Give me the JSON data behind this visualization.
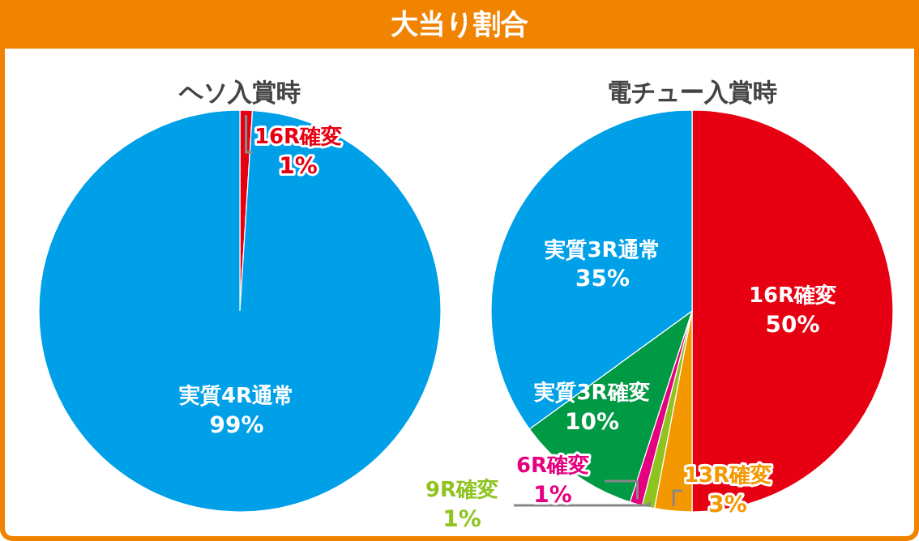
{
  "chart_data": [
    {
      "type": "other",
      "title": "大当り割合"
    },
    {
      "type": "pie",
      "title": "ヘソ入賞時",
      "categories": [
        "16R確変",
        "実質4R通常"
      ],
      "values": [
        1,
        99
      ],
      "colors": [
        "#e60012",
        "#00a0e9"
      ],
      "value_labels": [
        "1%",
        "99%"
      ]
    },
    {
      "type": "pie",
      "title": "電チュー入賞時",
      "categories": [
        "16R確変",
        "13R確変",
        "9R確変",
        "6R確変",
        "実質3R確変",
        "実質3R通常"
      ],
      "values": [
        50,
        3,
        1,
        1,
        10,
        35
      ],
      "colors": [
        "#e60012",
        "#f39800",
        "#8fc31f",
        "#e4007f",
        "#009944",
        "#00a0e9"
      ],
      "value_labels": [
        "50%",
        "3%",
        "1%",
        "1%",
        "10%",
        "35%"
      ]
    }
  ]
}
